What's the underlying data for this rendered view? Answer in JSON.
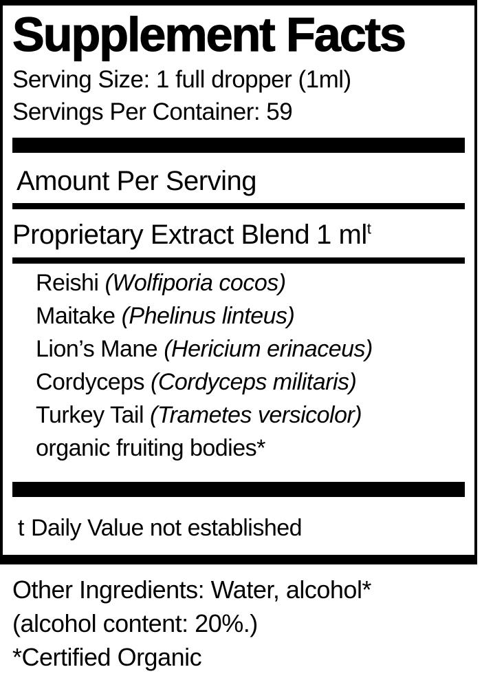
{
  "colors": {
    "ink": "#000000",
    "paper": "#ffffff"
  },
  "label": {
    "title": "Supplement Facts",
    "serving_size": "Serving Size: 1 full dropper (1ml)",
    "servings_per_container": "Servings Per Container: 59",
    "amount_per_serving_heading": "Amount Per Serving",
    "blend": {
      "name": "Proprietary Extract Blend",
      "amount": "1 ml",
      "daily_value_symbol": "t"
    },
    "ingredients": [
      {
        "name": "Reishi",
        "latin": "(Wolfiporia cocos)"
      },
      {
        "name": "Maitake",
        "latin": "(Phelinus linteus)"
      },
      {
        "name": "Lion’s Mane",
        "latin": "(Hericium erinaceus)"
      },
      {
        "name": "Cordyceps",
        "latin": "(Cordyceps militaris)"
      },
      {
        "name": "Turkey Tail",
        "latin": "(Trametes versicolor)"
      },
      {
        "name": "organic fruiting bodies*",
        "latin": ""
      }
    ],
    "footnote": {
      "symbol": "t",
      "text": "Daily Value not established"
    },
    "other_ingredients_lines": [
      "Other Ingredients: Water, alcohol*",
      "(alcohol content: 20%.)",
      "*Certified Organic"
    ]
  }
}
